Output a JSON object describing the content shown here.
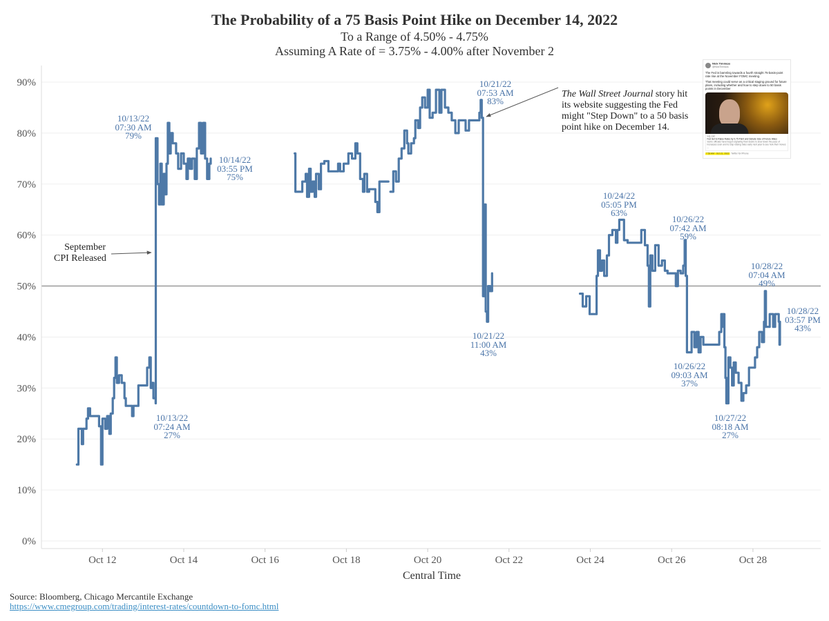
{
  "header": {
    "title": "The Probability of a 75 Basis Point Hike on December 14, 2022",
    "subtitle1": "To a Range of 4.50% - 4.75%",
    "subtitle2": "Assuming A Rate of = 3.75% - 4.00% after November 2"
  },
  "chart_data": {
    "type": "line",
    "title": "The Probability of a 75 Basis Point Hike on December 14, 2022",
    "xlabel": "Central Time",
    "ylabel": "",
    "xlim": [
      "2022-10-10T12:00",
      "2022-10-29T16:00"
    ],
    "ylim": [
      0,
      90
    ],
    "x_ticks": [
      {
        "date": "2022-10-12T00:00",
        "label": "Oct 12"
      },
      {
        "date": "2022-10-14T00:00",
        "label": "Oct 14"
      },
      {
        "date": "2022-10-16T00:00",
        "label": "Oct 16"
      },
      {
        "date": "2022-10-18T00:00",
        "label": "Oct 18"
      },
      {
        "date": "2022-10-20T00:00",
        "label": "Oct 20"
      },
      {
        "date": "2022-10-22T00:00",
        "label": "Oct 22"
      },
      {
        "date": "2022-10-24T00:00",
        "label": "Oct 24"
      },
      {
        "date": "2022-10-26T00:00",
        "label": "Oct 26"
      },
      {
        "date": "2022-10-28T00:00",
        "label": "Oct 28"
      }
    ],
    "y_ticks": [
      {
        "value": 0,
        "label": "0%"
      },
      {
        "value": 10,
        "label": "10%"
      },
      {
        "value": 20,
        "label": "20%"
      },
      {
        "value": 30,
        "label": "30%"
      },
      {
        "value": 40,
        "label": "40%"
      },
      {
        "value": 50,
        "label": "50%"
      },
      {
        "value": 60,
        "label": "60%"
      },
      {
        "value": 70,
        "label": "70%"
      },
      {
        "value": 80,
        "label": "80%"
      },
      {
        "value": 90,
        "label": "90%"
      }
    ],
    "grid": true,
    "reference_line": 50,
    "line_color": "#4e79a7",
    "annotation_color": "#4a74a8",
    "segments": [
      [
        [
          "2022-10-11T08:54",
          15
        ],
        [
          "2022-10-11T09:48",
          22
        ],
        [
          "2022-10-11T11:48",
          19
        ],
        [
          "2022-10-11T12:36",
          22
        ],
        [
          "2022-10-11T14:36",
          24
        ],
        [
          "2022-10-11T15:30",
          26
        ],
        [
          "2022-10-11T16:42",
          24.5
        ],
        [
          "2022-10-11T20:42",
          24.5
        ],
        [
          "2022-10-11T22:00",
          22.5
        ],
        [
          "2022-10-11T23:12",
          15
        ],
        [
          "2022-10-12T00:00",
          24
        ],
        [
          "2022-10-12T01:36",
          22
        ],
        [
          "2022-10-12T02:48",
          24.5
        ],
        [
          "2022-10-12T04:06",
          21
        ],
        [
          "2022-10-12T04:54",
          25
        ],
        [
          "2022-10-12T06:06",
          28
        ],
        [
          "2022-10-12T06:54",
          32
        ],
        [
          "2022-10-12T07:42",
          36
        ],
        [
          "2022-10-12T08:30",
          31
        ],
        [
          "2022-10-12T09:48",
          32.5
        ],
        [
          "2022-10-12T11:24",
          31
        ],
        [
          "2022-10-12T13:00",
          28
        ],
        [
          "2022-10-12T13:48",
          26.5
        ],
        [
          "2022-10-12T17:06",
          26.5
        ],
        [
          "2022-10-12T17:30",
          24.5
        ],
        [
          "2022-10-12T18:18",
          26.5
        ],
        [
          "2022-10-12T21:12",
          30.5
        ],
        [
          "2022-10-13T01:12",
          30.5
        ],
        [
          "2022-10-13T02:24",
          34
        ],
        [
          "2022-10-13T03:42",
          36
        ],
        [
          "2022-10-13T04:30",
          30
        ],
        [
          "2022-10-13T05:18",
          31
        ],
        [
          "2022-10-13T06:06",
          28
        ],
        [
          "2022-10-13T07:24",
          27
        ],
        [
          "2022-10-13T07:30",
          79
        ],
        [
          "2022-10-13T08:30",
          70
        ],
        [
          "2022-10-13T09:24",
          66
        ],
        [
          "2022-10-13T10:12",
          74
        ],
        [
          "2022-10-13T11:00",
          66
        ],
        [
          "2022-10-13T12:12",
          72
        ],
        [
          "2022-10-13T13:00",
          68
        ],
        [
          "2022-10-13T13:48",
          74
        ],
        [
          "2022-10-13T14:36",
          82
        ],
        [
          "2022-10-13T15:30",
          76
        ],
        [
          "2022-10-13T16:18",
          80
        ],
        [
          "2022-10-13T17:30",
          78
        ],
        [
          "2022-10-13T19:30",
          76
        ],
        [
          "2022-10-13T20:42",
          73
        ],
        [
          "2022-10-13T22:24",
          76
        ],
        [
          "2022-10-14T00:00",
          74
        ],
        [
          "2022-10-14T01:36",
          71
        ],
        [
          "2022-10-14T02:24",
          75
        ],
        [
          "2022-10-14T03:42",
          73
        ],
        [
          "2022-10-14T04:54",
          75
        ],
        [
          "2022-10-14T06:30",
          71
        ],
        [
          "2022-10-14T07:42",
          77
        ],
        [
          "2022-10-14T09:00",
          82
        ],
        [
          "2022-10-14T10:12",
          76
        ],
        [
          "2022-10-14T11:24",
          82
        ],
        [
          "2022-10-14T12:36",
          75
        ],
        [
          "2022-10-14T13:48",
          71
        ],
        [
          "2022-10-14T15:06",
          74
        ],
        [
          "2022-10-14T15:30",
          74
        ],
        [
          "2022-10-14T15:55",
          75
        ]
      ],
      [
        [
          "2022-10-16T17:30",
          76
        ],
        [
          "2022-10-16T17:54",
          68.5
        ],
        [
          "2022-10-16T21:12",
          68.5
        ],
        [
          "2022-10-16T22:00",
          70.5
        ],
        [
          "2022-10-17T00:00",
          72
        ],
        [
          "2022-10-17T00:48",
          67.5
        ],
        [
          "2022-10-17T02:00",
          73
        ],
        [
          "2022-10-17T02:54",
          68.5
        ],
        [
          "2022-10-17T04:06",
          70.5
        ],
        [
          "2022-10-17T05:18",
          67.5
        ],
        [
          "2022-10-17T06:06",
          72
        ],
        [
          "2022-10-17T07:42",
          69
        ],
        [
          "2022-10-17T09:00",
          74
        ],
        [
          "2022-10-17T11:00",
          74.5
        ],
        [
          "2022-10-17T13:24",
          72.5
        ],
        [
          "2022-10-17T17:06",
          72.5
        ],
        [
          "2022-10-17T19:06",
          74
        ],
        [
          "2022-10-17T20:18",
          72.5
        ],
        [
          "2022-10-17T22:24",
          74
        ],
        [
          "2022-10-18T01:12",
          76
        ],
        [
          "2022-10-18T03:18",
          75
        ],
        [
          "2022-10-18T05:18",
          78
        ],
        [
          "2022-10-18T06:30",
          76
        ],
        [
          "2022-10-18T08:06",
          71
        ],
        [
          "2022-10-18T09:48",
          68.5
        ],
        [
          "2022-10-18T10:36",
          72
        ],
        [
          "2022-10-18T12:12",
          68.5
        ],
        [
          "2022-10-18T13:24",
          69
        ],
        [
          "2022-10-18T15:30",
          69
        ],
        [
          "2022-10-18T17:06",
          66.5
        ],
        [
          "2022-10-18T18:18",
          64.5
        ],
        [
          "2022-10-18T19:30",
          70.5
        ],
        [
          "2022-10-19T00:48",
          70.5
        ]
      ],
      [
        [
          "2022-10-19T02:00",
          68.5
        ],
        [
          "2022-10-19T03:42",
          72.5
        ],
        [
          "2022-10-19T05:18",
          70.5
        ],
        [
          "2022-10-19T06:54",
          75
        ],
        [
          "2022-10-19T08:36",
          77
        ],
        [
          "2022-10-19T10:12",
          80.5
        ],
        [
          "2022-10-19T11:48",
          78
        ],
        [
          "2022-10-19T12:36",
          76
        ],
        [
          "2022-10-19T14:12",
          78
        ],
        [
          "2022-10-19T15:54",
          79
        ],
        [
          "2022-10-19T16:42",
          82.5
        ],
        [
          "2022-10-19T18:18",
          81
        ],
        [
          "2022-10-19T19:30",
          85
        ],
        [
          "2022-10-19T20:48",
          87
        ],
        [
          "2022-10-19T22:24",
          85
        ],
        [
          "2022-10-20T00:00",
          88.5
        ],
        [
          "2022-10-20T01:12",
          83
        ],
        [
          "2022-10-20T02:54",
          84
        ],
        [
          "2022-10-20T04:54",
          88.5
        ],
        [
          "2022-10-20T06:54",
          84
        ],
        [
          "2022-10-20T08:06",
          88.5
        ],
        [
          "2022-10-20T10:12",
          85
        ],
        [
          "2022-10-20T12:12",
          84
        ],
        [
          "2022-10-20T14:12",
          82.5
        ],
        [
          "2022-10-20T16:18",
          80
        ],
        [
          "2022-10-20T18:18",
          82.5
        ],
        [
          "2022-10-20T20:24",
          82.5
        ],
        [
          "2022-10-20T22:24",
          80.5
        ],
        [
          "2022-10-21T00:24",
          82.5
        ],
        [
          "2022-10-21T04:30",
          82.5
        ],
        [
          "2022-10-21T06:30",
          84
        ],
        [
          "2022-10-21T07:18",
          86.5
        ],
        [
          "2022-10-21T07:53",
          83
        ],
        [
          "2022-10-21T08:10",
          83
        ],
        [
          "2022-10-21T08:40",
          48
        ],
        [
          "2022-10-21T09:30",
          66
        ],
        [
          "2022-10-21T10:15",
          45
        ],
        [
          "2022-10-21T11:00",
          43
        ],
        [
          "2022-10-21T11:40",
          50
        ],
        [
          "2022-10-21T12:50",
          49
        ],
        [
          "2022-10-21T14:00",
          52.5
        ]
      ],
      [
        [
          "2022-10-23T17:54",
          48.5
        ],
        [
          "2022-10-23T19:30",
          46
        ],
        [
          "2022-10-23T21:36",
          48
        ],
        [
          "2022-10-23T23:36",
          44.5
        ],
        [
          "2022-10-24T02:30",
          44.5
        ],
        [
          "2022-10-24T03:42",
          52
        ],
        [
          "2022-10-24T04:30",
          57
        ],
        [
          "2022-10-24T05:42",
          53
        ],
        [
          "2022-10-24T06:54",
          55
        ],
        [
          "2022-10-24T08:12",
          52
        ],
        [
          "2022-10-24T09:48",
          56
        ],
        [
          "2022-10-24T11:00",
          60
        ],
        [
          "2022-10-24T13:00",
          61
        ],
        [
          "2022-10-24T15:06",
          58.5
        ],
        [
          "2022-10-24T16:00",
          61
        ],
        [
          "2022-10-24T17:05",
          63
        ],
        [
          "2022-10-24T19:54",
          59
        ],
        [
          "2022-10-24T22:00",
          58.5
        ],
        [
          "2022-10-25T04:06",
          58.5
        ],
        [
          "2022-10-25T06:06",
          61
        ],
        [
          "2022-10-25T08:12",
          58
        ],
        [
          "2022-10-25T09:48",
          54
        ],
        [
          "2022-10-25T10:36",
          46
        ],
        [
          "2022-10-25T11:24",
          56
        ],
        [
          "2022-10-25T12:36",
          53
        ],
        [
          "2022-10-25T14:18",
          58
        ],
        [
          "2022-10-25T16:18",
          54
        ],
        [
          "2022-10-25T18:18",
          55
        ],
        [
          "2022-10-25T20:00",
          53
        ],
        [
          "2022-10-25T21:36",
          52.5
        ],
        [
          "2022-10-26T00:48",
          52.5
        ],
        [
          "2022-10-26T02:30",
          50
        ],
        [
          "2022-10-26T03:42",
          53
        ],
        [
          "2022-10-26T05:18",
          52.5
        ],
        [
          "2022-10-26T06:50",
          54
        ],
        [
          "2022-10-26T07:42",
          59
        ],
        [
          "2022-10-26T08:20",
          52
        ],
        [
          "2022-10-26T09:03",
          37
        ],
        [
          "2022-10-26T11:48",
          41
        ],
        [
          "2022-10-26T13:24",
          38
        ],
        [
          "2022-10-26T14:42",
          41
        ],
        [
          "2022-10-26T15:54",
          37
        ],
        [
          "2022-10-26T17:06",
          40
        ],
        [
          "2022-10-26T18:42",
          38.5
        ],
        [
          "2022-10-27T02:54",
          38.5
        ],
        [
          "2022-10-27T04:06",
          41
        ],
        [
          "2022-10-27T05:18",
          44.5
        ],
        [
          "2022-10-27T05:50",
          42
        ],
        [
          "2022-10-27T06:30",
          44.5
        ],
        [
          "2022-10-27T07:10",
          38
        ],
        [
          "2022-10-27T07:45",
          32
        ],
        [
          "2022-10-27T08:18",
          27
        ],
        [
          "2022-10-27T09:30",
          36
        ],
        [
          "2022-10-27T10:40",
          34
        ],
        [
          "2022-10-27T11:40",
          30.5
        ],
        [
          "2022-10-27T12:40",
          35
        ],
        [
          "2022-10-27T13:50",
          33
        ],
        [
          "2022-10-27T15:30",
          31
        ],
        [
          "2022-10-27T17:10",
          27.5
        ],
        [
          "2022-10-27T18:20",
          29
        ],
        [
          "2022-10-27T20:00",
          30.5
        ],
        [
          "2022-10-27T21:40",
          34
        ],
        [
          "2022-10-28T01:12",
          36
        ],
        [
          "2022-10-28T02:30",
          38
        ],
        [
          "2022-10-28T03:42",
          41
        ],
        [
          "2022-10-28T05:18",
          39
        ],
        [
          "2022-10-28T06:30",
          43
        ],
        [
          "2022-10-28T07:04",
          49
        ],
        [
          "2022-10-28T07:40",
          42
        ],
        [
          "2022-10-28T09:54",
          44.5
        ],
        [
          "2022-10-28T11:54",
          42
        ],
        [
          "2022-10-28T13:06",
          44.5
        ],
        [
          "2022-10-28T15:12",
          43
        ],
        [
          "2022-10-28T15:40",
          38.5
        ],
        [
          "2022-10-28T15:57",
          43
        ]
      ]
    ],
    "annotations": [
      {
        "date": "10/13/22",
        "time": "07:30 AM",
        "value": "79%"
      },
      {
        "date": "10/14/22",
        "time": "03:55 PM",
        "value": "75%"
      },
      {
        "date": "10/13/22",
        "time": "07:24 AM",
        "value": "27%"
      },
      {
        "date": "10/21/22",
        "time": "07:53 AM",
        "value": "83%"
      },
      {
        "date": "10/21/22",
        "time": "11:00 AM",
        "value": "43%"
      },
      {
        "date": "10/24/22",
        "time": "05:05 PM",
        "value": "63%"
      },
      {
        "date": "10/26/22",
        "time": "07:42 AM",
        "value": "59%"
      },
      {
        "date": "10/26/22",
        "time": "09:03 AM",
        "value": "37%"
      },
      {
        "date": "10/27/22",
        "time": "08:18 AM",
        "value": "27%"
      },
      {
        "date": "10/28/22",
        "time": "07:04 AM",
        "value": "49%"
      },
      {
        "date": "10/28/22",
        "time": "03:57 PM",
        "value": "43%"
      }
    ],
    "notes": {
      "cpi": [
        "September",
        "CPI Released"
      ],
      "wsj_italic": "The Wall Street Journal",
      "wsj_line1_rest": " story hit",
      "wsj_line2": "its website suggesting the Fed",
      "wsj_line3": "might \"Step Down\" to a 50 basis",
      "wsj_line4": "point hike on December 14."
    }
  },
  "tweet": {
    "name": "Nick Timiraos",
    "handle": "@NickTimiraos",
    "para1": "The Fed is barreling towards a fourth straight 75-basis-point rate rise at the November FOMC meeting.",
    "para2": "That meeting could serve as a critical staging ground for future plans, including whether and how to step down to 50 basis points in December",
    "card_domain": "wsj.com",
    "card_title": "Fed Set to Raise Rates by 0.75 Point and Debate Size of Future Hikes",
    "card_desc": "Some officials have begun signaling their desire to slow down the pace of increases soon and to stop raising rates early next year to see how their moves ...",
    "time": "7:53 AM · Oct 21, 2022",
    "client": "Twitter for iPhone"
  },
  "footer": {
    "source": "Source: Bloomberg, Chicago Mercantile Exchange",
    "link": "https://www.cmegroup.com/trading/interest-rates/countdown-to-fomc.html"
  }
}
